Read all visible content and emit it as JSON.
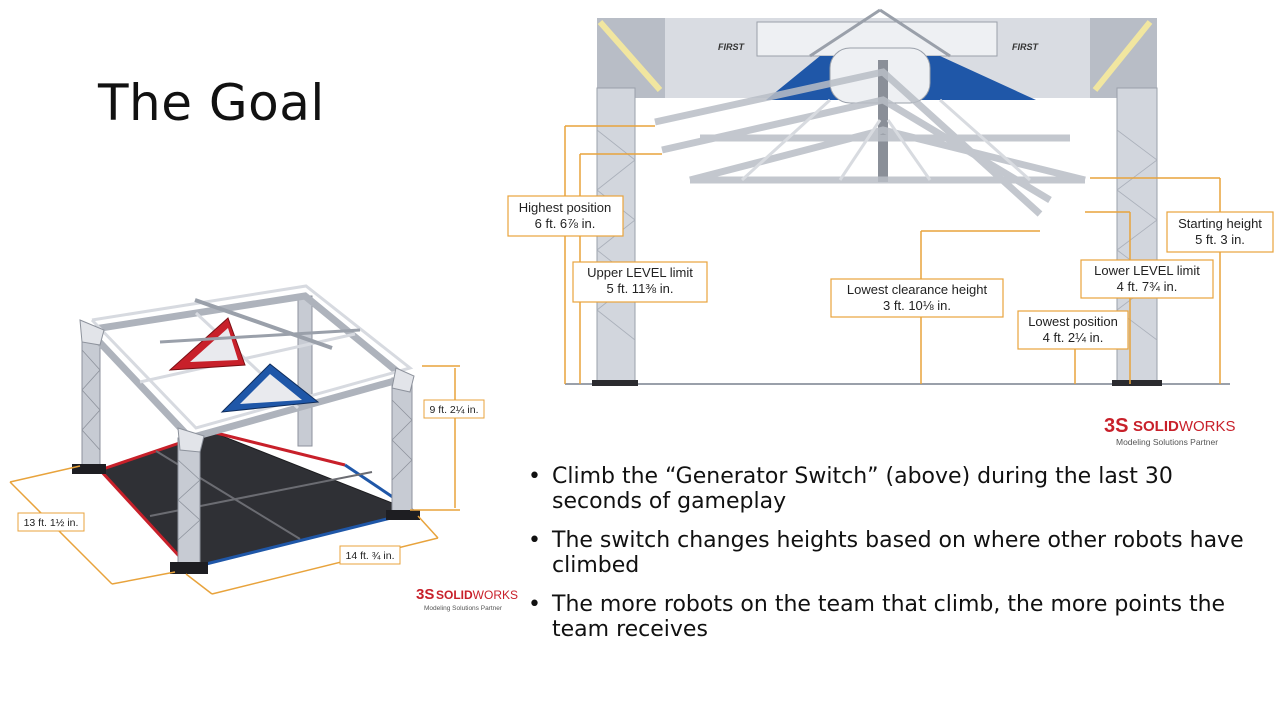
{
  "slide": {
    "title": "The Goal"
  },
  "left_figure": {
    "dims": {
      "height": "9 ft. 2¼ in.",
      "width": "13 ft. 1½ in.",
      "depth": "14 ft. ¾ in."
    },
    "logo": {
      "brand_bold": "SOLID",
      "brand_rest": "WORKS",
      "tagline": "Modeling Solutions Partner"
    }
  },
  "right_figure": {
    "labels": {
      "highest_title": "Highest position",
      "highest_value": "6 ft. 6⅞ in.",
      "upper_title": "Upper LEVEL limit",
      "upper_value": "5 ft. 11⅜ in.",
      "clearance_title": "Lowest clearance height",
      "clearance_value": "3 ft. 10⅛ in.",
      "lowpos_title": "Lowest position",
      "lowpos_value": "4 ft. 2¼ in.",
      "lowerlevel_title": "Lower LEVEL limit",
      "lowerlevel_value": "4 ft. 7¾ in.",
      "starting_title": "Starting height",
      "starting_value": "5 ft. 3 in."
    },
    "first_logo_text": "FIRST",
    "logo": {
      "brand_bold": "SOLID",
      "brand_rest": "WORKS",
      "tagline": "Modeling Solutions Partner"
    }
  },
  "bullets": [
    "Climb the “Generator Switch” (above) during the last 30 seconds of gameplay",
    "The switch changes heights based on where other robots have climbed",
    "The more robots on the team that climb, the more points the team receives"
  ],
  "colors": {
    "dimension_line": "#e8a33c",
    "red_alliance": "#c8202a",
    "blue_alliance": "#1f57a8",
    "truss": "#c7cbd3",
    "logo_red": "#c8202a"
  }
}
